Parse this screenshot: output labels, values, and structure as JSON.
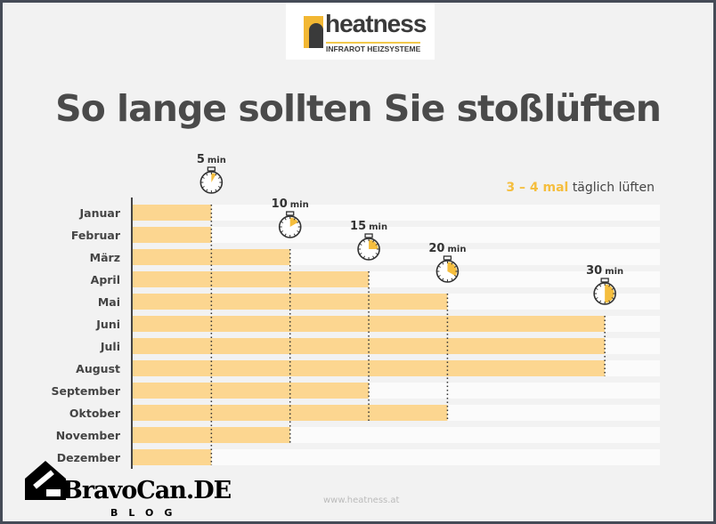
{
  "logo": {
    "name": "heatness",
    "tagline": "INFRAROT HEIZSYSTEME"
  },
  "footer_url": "www.heatness.at",
  "watermark": {
    "name": "BravoCan.DE",
    "sub": "BLOG"
  },
  "chart_data": {
    "type": "bar",
    "orientation": "horizontal",
    "title": "So lange sollten Sie stoßlüften",
    "annotation": {
      "highlight": "3 – 4 mal",
      "text": "täglich lüften"
    },
    "unit": "min",
    "categories": [
      "Januar",
      "Februar",
      "März",
      "April",
      "Mai",
      "Juni",
      "Juli",
      "August",
      "September",
      "Oktober",
      "November",
      "Dezember"
    ],
    "values": [
      5,
      5,
      10,
      15,
      20,
      30,
      30,
      30,
      15,
      20,
      10,
      5
    ],
    "markers": [
      5,
      10,
      15,
      20,
      30
    ],
    "xlim": [
      0,
      33.5
    ],
    "colors": {
      "bar": "#fcd690",
      "track": "#fbfbfb",
      "accent": "#f5be3e",
      "text": "#444444"
    }
  }
}
